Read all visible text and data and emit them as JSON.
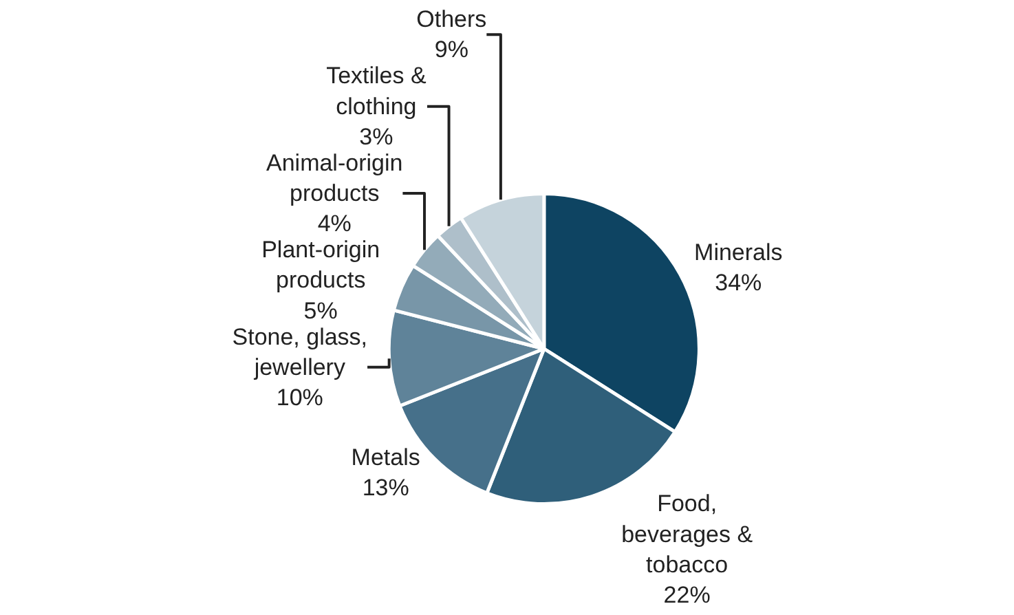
{
  "chart_data": {
    "type": "pie",
    "categories": [
      "Minerals",
      "Food, beverages & tobacco",
      "Metals",
      "Stone, glass, jewellery",
      "Plant-origin products",
      "Animal-origin products",
      "Textiles & clothing",
      "Others"
    ],
    "values": [
      34,
      22,
      13,
      10,
      5,
      4,
      3,
      9
    ],
    "value_labels": [
      "34%",
      "22%",
      "13%",
      "10%",
      "5%",
      "4%",
      "3%",
      "9%"
    ],
    "colors": [
      "#0e4462",
      "#2f5f7a",
      "#46708a",
      "#5f8399",
      "#7896a8",
      "#93abb9",
      "#aebfca",
      "#c5d3db"
    ],
    "legend": false
  }
}
